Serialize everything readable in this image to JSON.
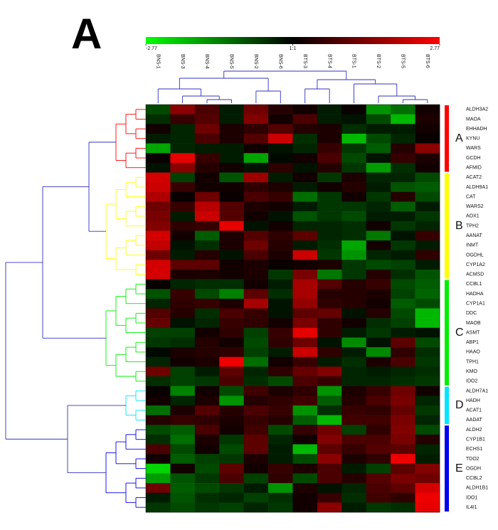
{
  "chart_data": {
    "type": "heatmap",
    "title": "A",
    "columns": [
      "BNS-1",
      "BNS-3",
      "BNS-4",
      "BNS-5",
      "BNS-2",
      "BNS-6",
      "BTS-3",
      "BTS-4",
      "BTS-1",
      "BTS-2",
      "BTS-5",
      "BTS-6"
    ],
    "rows": [
      "ALDH3A2",
      "MAOA",
      "EHHADH",
      "KYNU",
      "WARS",
      "GCDH",
      "AFMID",
      "ACAT2",
      "ALDH9A1",
      "CAT",
      "WARS2",
      "AOX1",
      "TPH2",
      "AANAT",
      "INMT",
      "OGDHL",
      "CYP1A2",
      "ACMSD",
      "CCBL1",
      "HADHA",
      "CYP1A1",
      "DDC",
      "MAOB",
      "ASMT",
      "ABP1",
      "HAAO",
      "TPH1",
      "KMO",
      "IDO2",
      "ALDH7A1",
      "HADH",
      "ACAT1",
      "AADAT",
      "ALDH2",
      "CYP1B1",
      "ECHS1",
      "TDO2",
      "OGDH",
      "CCBL2",
      "ALDH1B1",
      "IDO1",
      "IL4I1"
    ],
    "values": [
      [
        -0.8,
        1.5,
        0.8,
        -0.3,
        1.2,
        0.4,
        0.2,
        -0.3,
        0.1,
        -1.6,
        -1.2,
        0.2
      ],
      [
        -0.5,
        0.6,
        0.9,
        -0.3,
        1.4,
        0.2,
        0.8,
        -0.3,
        -0.2,
        -0.8,
        -2.0,
        0.3
      ],
      [
        0.2,
        -0.4,
        1.2,
        0.3,
        0.5,
        0.9,
        0.4,
        0.3,
        -0.5,
        -0.3,
        -0.3,
        0.2
      ],
      [
        -0.3,
        -0.4,
        0.8,
        0.3,
        0.9,
        2.2,
        -0.5,
        0.3,
        -2.0,
        -0.8,
        -0.4,
        0.1
      ],
      [
        -1.8,
        -0.4,
        -0.3,
        -0.3,
        0.2,
        -0.2,
        -0.4,
        0.6,
        -0.6,
        -1.0,
        0.4,
        1.5
      ],
      [
        0.1,
        2.5,
        0.6,
        -0.3,
        -1.8,
        -0.1,
        0.2,
        0.8,
        -0.8,
        -0.2,
        0.6,
        0.3
      ],
      [
        -0.2,
        1.5,
        0.4,
        0.2,
        -0.2,
        0.5,
        -0.2,
        0.4,
        -0.6,
        -1.7,
        -0.5,
        0.2
      ],
      [
        2.3,
        -0.7,
        0.2,
        -0.9,
        1.7,
        -0.3,
        0.2,
        -0.6,
        0.3,
        -0.4,
        -0.4,
        -0.8
      ],
      [
        2.2,
        0.6,
        0.2,
        0.2,
        0.5,
        0.3,
        -0.3,
        0.2,
        0.4,
        -0.3,
        -0.9,
        -1.0
      ],
      [
        1.9,
        0.1,
        1.2,
        0.1,
        0.8,
        0.6,
        -1.2,
        -0.6,
        0.2,
        -0.6,
        0.4,
        -0.8
      ],
      [
        1.2,
        0.6,
        2.0,
        0.9,
        0.3,
        0.2,
        -0.3,
        -0.6,
        -0.6,
        -0.4,
        -1.0,
        -0.3
      ],
      [
        1.3,
        -0.3,
        2.2,
        0.9,
        0.2,
        -0.2,
        -0.9,
        -0.6,
        -0.8,
        -0.3,
        -0.3,
        -0.6
      ],
      [
        1.4,
        0.5,
        0.6,
        2.5,
        -0.2,
        0.2,
        -0.4,
        -0.4,
        -0.5,
        0.2,
        -0.6,
        -0.4
      ],
      [
        2.3,
        0.2,
        -1.0,
        0.3,
        0.9,
        0.5,
        1.0,
        -0.4,
        -0.5,
        -1.3,
        -0.2,
        0.6
      ],
      [
        2.1,
        -0.2,
        -0.5,
        0.3,
        1.2,
        0.4,
        -0.3,
        -0.5,
        -1.8,
        0.2,
        -0.6,
        -0.3
      ],
      [
        1.2,
        -0.3,
        0.4,
        -0.2,
        0.8,
        0.3,
        2.2,
        -0.6,
        -1.6,
        -0.4,
        -0.3,
        0.5
      ],
      [
        2.3,
        1.0,
        1.0,
        0.2,
        0.3,
        0.1,
        0.2,
        0.3,
        -0.6,
        -0.8,
        -0.7,
        -0.3
      ],
      [
        2.3,
        0.3,
        0.3,
        0.2,
        0.3,
        -0.6,
        1.3,
        -1.3,
        -0.6,
        0.4,
        -0.5,
        -0.9
      ],
      [
        0.1,
        -0.4,
        -0.5,
        -0.5,
        0.2,
        -0.3,
        1.8,
        0.9,
        0.4,
        0.6,
        -0.8,
        -1.0
      ],
      [
        -0.9,
        0.6,
        -0.8,
        -1.4,
        1.0,
        -0.5,
        1.8,
        0.4,
        0.4,
        0.3,
        -0.7,
        -1.1
      ],
      [
        -0.4,
        0.5,
        0.6,
        0.3,
        1.8,
        -0.2,
        1.6,
        0.5,
        0.4,
        0.2,
        -1.0,
        -0.8
      ],
      [
        0.9,
        0.4,
        -0.5,
        0.8,
        0.6,
        -0.2,
        1.0,
        1.1,
        -0.2,
        0.4,
        -0.8,
        -2.0
      ],
      [
        1.1,
        -0.2,
        -0.4,
        0.6,
        0.5,
        0.2,
        1.3,
        0.5,
        0.2,
        -0.5,
        -0.7,
        -2.0
      ],
      [
        -0.7,
        -0.7,
        0.2,
        0.5,
        -0.7,
        0.6,
        2.5,
        0.5,
        -0.3,
        -0.6,
        -0.3,
        -0.2
      ],
      [
        -0.6,
        -0.5,
        0.4,
        0.2,
        -0.8,
        0.5,
        1.2,
        -0.2,
        -1.5,
        -0.2,
        1.0,
        -0.8
      ],
      [
        -0.1,
        0.3,
        0.4,
        0.5,
        -0.7,
        -0.3,
        2.2,
        0.5,
        -0.3,
        -1.5,
        0.5,
        -0.5
      ],
      [
        -0.4,
        0.2,
        0.3,
        2.6,
        -1.2,
        0.2,
        0.6,
        -0.3,
        -0.5,
        0.3,
        0.8,
        -0.6
      ],
      [
        1.2,
        -0.7,
        -0.3,
        1.0,
        -0.4,
        0.5,
        1.1,
        1.4,
        -0.4,
        -0.3,
        -0.4,
        -0.5
      ],
      [
        -0.5,
        -0.7,
        -0.6,
        0.8,
        -0.5,
        -0.8,
        0.8,
        0.6,
        -0.4,
        -0.4,
        -0.5,
        -0.6
      ],
      [
        0.1,
        -1.4,
        0.2,
        -0.8,
        0.7,
        0.3,
        0.5,
        -1.6,
        0.3,
        0.6,
        1.2,
        0.2
      ],
      [
        0.2,
        -0.4,
        0.3,
        -1.6,
        0.4,
        0.5,
        0.7,
        -1.0,
        0.4,
        0.8,
        1.3,
        -0.4
      ],
      [
        -1.2,
        0.3,
        0.9,
        0.4,
        0.8,
        0.6,
        -1.6,
        -0.5,
        0.6,
        0.5,
        1.1,
        -0.6
      ],
      [
        0.4,
        0.6,
        0.5,
        0.3,
        0.6,
        0.4,
        -1.0,
        -2.0,
        0.7,
        0.7,
        1.3,
        -0.4
      ],
      [
        -0.8,
        -1.0,
        0.8,
        0.2,
        0.7,
        -0.8,
        0.6,
        1.2,
        -0.7,
        0.5,
        1.4,
        -0.8
      ],
      [
        -0.5,
        -1.2,
        0.3,
        -0.6,
        1.0,
        -0.4,
        0.2,
        1.4,
        0.8,
        0.8,
        1.3,
        0.4
      ],
      [
        0.8,
        -0.8,
        0.2,
        -0.8,
        1.0,
        -0.3,
        -2.0,
        1.0,
        0.6,
        0.9,
        1.0,
        -0.4
      ],
      [
        0.2,
        -1.0,
        -0.7,
        -0.6,
        0.3,
        -0.3,
        -0.8,
        1.5,
        0.3,
        0.5,
        2.6,
        -0.3
      ],
      [
        -2.3,
        0.2,
        -0.8,
        1.0,
        0.2,
        0.6,
        0.3,
        0.8,
        -0.3,
        -0.7,
        1.0,
        1.4
      ],
      [
        -1.7,
        -0.9,
        -0.6,
        0.8,
        -0.7,
        0.5,
        -0.8,
        0.8,
        0.4,
        0.9,
        1.3,
        1.2
      ],
      [
        1.2,
        -1.0,
        -0.8,
        -0.6,
        -0.3,
        -1.6,
        0.3,
        -0.2,
        -0.4,
        0.8,
        1.0,
        2.3
      ],
      [
        -0.3,
        -0.9,
        -0.5,
        -0.4,
        -0.7,
        -0.5,
        0.2,
        0.6,
        -0.5,
        0.7,
        0.5,
        2.6
      ],
      [
        -0.6,
        -0.8,
        -0.6,
        -0.7,
        -0.4,
        -0.6,
        0.2,
        1.5,
        -0.3,
        -0.6,
        -0.5,
        2.5
      ]
    ],
    "clim": [
      -2.77,
      2.77
    ],
    "cticks": [
      -2.77,
      {
        "value": 0,
        "label": "1:1"
      },
      2.77
    ],
    "low_color": "#00ff00",
    "mid_color": "#000000",
    "high_color": "#ff0000",
    "clusters": [
      {
        "name": "A",
        "color": "#ff0000",
        "size": 7
      },
      {
        "name": "B",
        "color": "#ffff00",
        "size": 11
      },
      {
        "name": "C",
        "color": "#00ee00",
        "size": 11
      },
      {
        "name": "D",
        "color": "#00e5ff",
        "size": 4
      },
      {
        "name": "E",
        "color": "#0000ee",
        "size": 9
      }
    ]
  }
}
